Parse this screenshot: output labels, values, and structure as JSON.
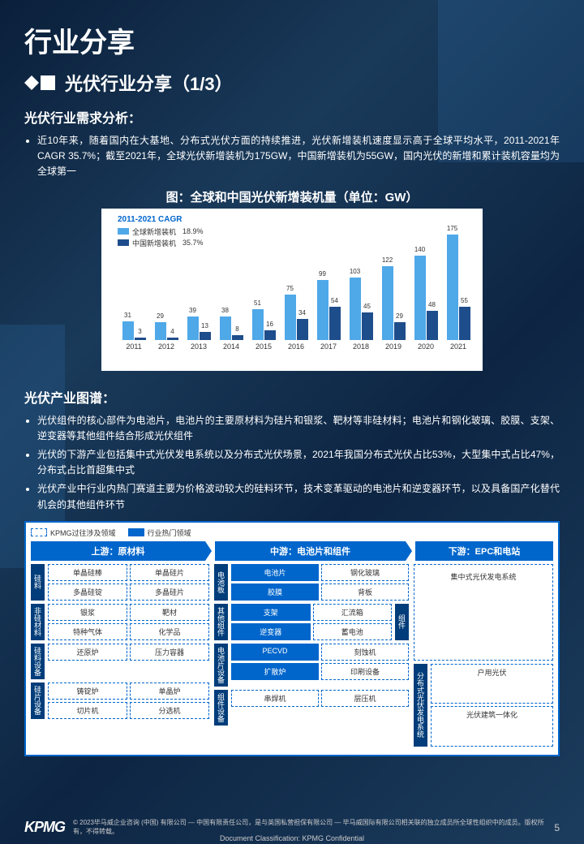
{
  "main_title": "行业分享",
  "sub_title": "光伏行业分享（1/3）",
  "section1": {
    "title": "光伏行业需求分析：",
    "bullet": "近10年来，随着国内在大基地、分布式光伏方面的持续推进，光伏新增装机速度显示高于全球平均水平，2011-2021年CAGR 35.7%；截至2021年，全球光伏新增装机为175GW，中国新增装机为55GW，国内光伏的新增和累计装机容量均为全球第一"
  },
  "chart": {
    "title": "图：全球和中国光伏新增装机量（单位：GW）",
    "legend_title": "2011-2021 CAGR",
    "legend": [
      {
        "label": "全球新增装机",
        "value": "18.9%",
        "color": "#4fa8e8"
      },
      {
        "label": "中国新增装机",
        "value": "35.7%",
        "color": "#1e4d8b"
      }
    ],
    "years": [
      "2011",
      "2012",
      "2013",
      "2014",
      "2015",
      "2016",
      "2017",
      "2018",
      "2019",
      "2020",
      "2021"
    ],
    "global": [
      31,
      29,
      39,
      38,
      51,
      75,
      99,
      103,
      122,
      140,
      175
    ],
    "china": [
      3,
      4,
      13,
      8,
      16,
      34,
      54,
      45,
      29,
      48,
      55
    ],
    "max": 175,
    "color_global": "#4fa8e8",
    "color_china": "#1e4d8b"
  },
  "section2": {
    "title": "光伏产业图谱：",
    "bullets": [
      "光伏组件的核心部件为电池片，电池片的主要原材料为硅片和银浆、靶材等非硅材料；电池片和钢化玻璃、胶膜、支架、逆变器等其他组件结合形成光伏组件",
      "光伏的下游产业包括集中式光伏发电系统以及分布式光伏场景，2021年我国分布式光伏占比53%，大型集中式占比47%，分布式占比首超集中式",
      "光伏产业中行业内热门赛道主要为价格波动较大的硅料环节，技术变革驱动的电池片和逆变器环节，以及具备国产化替代机会的其他组件环节"
    ]
  },
  "diagram": {
    "legend": [
      {
        "label": "KPMG过往涉及领域",
        "type": "dashed"
      },
      {
        "label": "行业热门领域",
        "type": "solid"
      }
    ],
    "columns": [
      "上游：原材料",
      "中游：电池片和组件",
      "下游：EPC和电站"
    ],
    "col1": {
      "g1": {
        "cat": "硅料",
        "r1": [
          "单晶硅棒",
          "单晶硅片"
        ],
        "r2": [
          "多晶硅锭",
          "多晶硅片"
        ]
      },
      "g2": {
        "cat": "非硅材料",
        "r1": [
          "银浆",
          "靶材"
        ],
        "r2": [
          "特种气体",
          "化学品"
        ]
      },
      "g3": {
        "cat": "硅料设备",
        "r1": [
          "还原炉",
          "压力容器"
        ]
      },
      "g4": {
        "cat": "硅片设备",
        "r1": [
          "铸锭炉",
          "单晶炉"
        ],
        "r2": [
          "切片机",
          "分选机"
        ]
      }
    },
    "col2": {
      "g1": {
        "cat": "电池板",
        "r1": [
          "电池片",
          "钢化玻璃"
        ],
        "r2": [
          "胶膜",
          "背板"
        ]
      },
      "g2": {
        "cat": "其他组件",
        "r1": [
          "支架",
          "汇流箱"
        ],
        "r2": [
          "逆变器",
          "蓄电池"
        ],
        "side": "组件"
      },
      "g3": {
        "cat": "电池片设备",
        "r1": [
          "PECVD",
          "刻蚀机"
        ],
        "r2": [
          "扩散炉",
          "印刷设备"
        ]
      },
      "g4": {
        "cat": "组件设备",
        "r1": [
          "串焊机",
          "层压机"
        ]
      }
    },
    "col3": {
      "i1": "集中式光伏发电系统",
      "cat": "分布式光伏发电系统",
      "i2": "户用光伏",
      "i3": "光伏建筑一体化"
    }
  },
  "footer": {
    "logo": "KPMG",
    "text": "© 2023毕马威企业咨询 (中国) 有限公司 — 中国有限责任公司，是与英国私营担保有限公司 — 毕马威国际有限公司相关联的独立成员所全球性组织中的成员。版权所有，不得转载。",
    "page": "5",
    "classification": "Document Classification: KPMG Confidential"
  }
}
